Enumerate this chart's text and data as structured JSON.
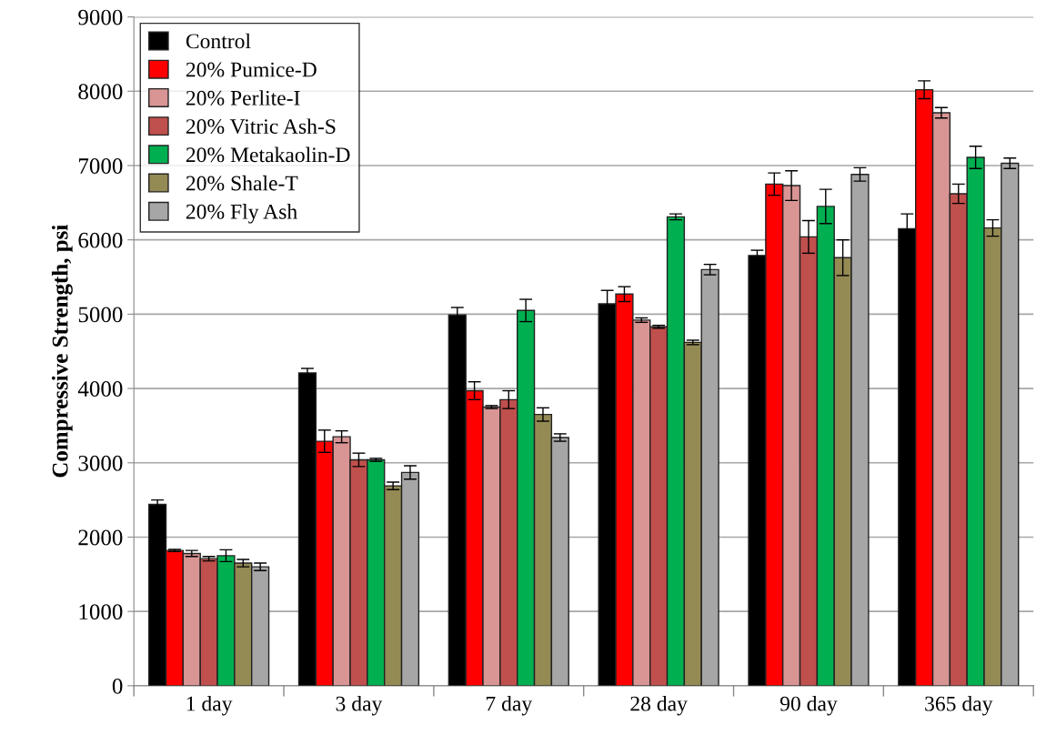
{
  "chart_data": {
    "type": "bar",
    "ylabel": "Compressive Strength, psi",
    "categories": [
      "1 day",
      "3 day",
      "7 day",
      "28 day",
      "90 day",
      "365 day"
    ],
    "ylim": [
      0,
      9000
    ],
    "yticks": [
      0,
      1000,
      2000,
      3000,
      4000,
      5000,
      6000,
      7000,
      8000,
      9000
    ],
    "grid": "y",
    "legend": "top left",
    "series": [
      {
        "name": "Control",
        "color": "#000000",
        "values": [
          2440,
          4210,
          4990,
          5140,
          5790,
          6150
        ],
        "errors": [
          60,
          60,
          100,
          180,
          70,
          200
        ]
      },
      {
        "name": "20% Pumice-D",
        "color": "#ff0000",
        "values": [
          1820,
          3290,
          3970,
          5270,
          6750,
          8020
        ],
        "errors": [
          15,
          150,
          120,
          100,
          150,
          120
        ]
      },
      {
        "name": "20% Perlite-I",
        "color": "#d99594",
        "values": [
          1780,
          3350,
          3750,
          4920,
          6730,
          7710
        ],
        "errors": [
          40,
          80,
          20,
          30,
          200,
          70
        ]
      },
      {
        "name": "20% Vitric Ash-S",
        "color": "#c0504d",
        "values": [
          1710,
          3040,
          3850,
          4830,
          6040,
          6620
        ],
        "errors": [
          30,
          90,
          120,
          20,
          220,
          130
        ]
      },
      {
        "name": "20% Metakaolin-D",
        "color": "#00b050",
        "values": [
          1750,
          3040,
          5050,
          6310,
          6450,
          7110
        ],
        "errors": [
          80,
          20,
          150,
          40,
          230,
          150
        ]
      },
      {
        "name": "20% Shale-T",
        "color": "#948a54",
        "values": [
          1650,
          2690,
          3650,
          4620,
          5760,
          6160
        ],
        "errors": [
          50,
          50,
          90,
          30,
          240,
          110
        ]
      },
      {
        "name": "20% Fly Ash",
        "color": "#a6a6a6",
        "values": [
          1600,
          2870,
          3340,
          5600,
          6880,
          7030
        ],
        "errors": [
          50,
          90,
          50,
          70,
          90,
          70
        ]
      }
    ]
  }
}
